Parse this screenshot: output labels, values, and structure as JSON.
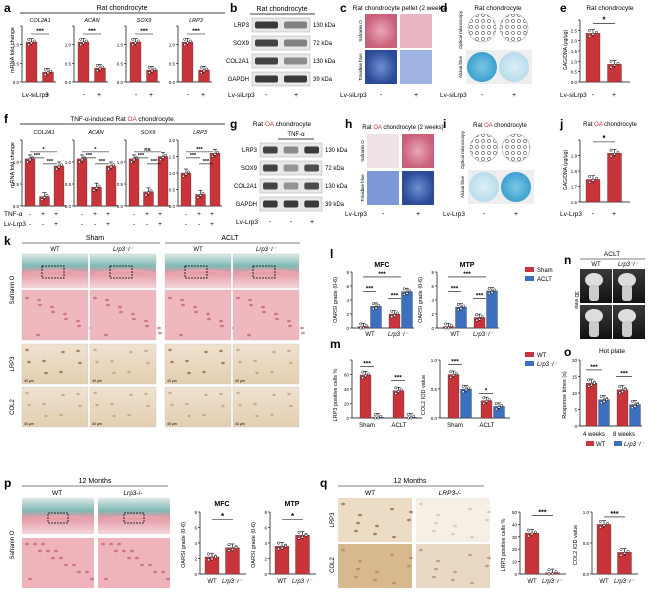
{
  "panel_letters": [
    "a",
    "b",
    "c",
    "d",
    "e",
    "f",
    "g",
    "h",
    "i",
    "j",
    "k",
    "l",
    "m",
    "n",
    "o",
    "p",
    "q"
  ],
  "colors": {
    "red": "#c9343a",
    "light_red": "#e98b8b",
    "blue": "#3d6fbf",
    "green": "#b8e0a6",
    "stain_red": "#dc7f8c",
    "stain_blue": "#4f73b8",
    "ihc": "#c9a37a"
  },
  "a": {
    "title": "Rat chondrocyte",
    "ylabel": "mRNA fold change",
    "genes": [
      "COL2A1",
      "ACAN",
      "SOX9",
      "LRP3"
    ],
    "sig": "***",
    "xlabel": "Lv-siLrp3",
    "xticks": [
      "-",
      "+"
    ]
  },
  "b": {
    "title": "Rat chondrocyte",
    "bands": [
      "LRP3",
      "SOX9",
      "COL2A1",
      "GAPDH"
    ],
    "kda": [
      "130 kDa",
      "72 kDa",
      "130 kDa",
      "39 kDa"
    ],
    "xlabel": "Lv-siLrp3",
    "xticks": [
      "-",
      "+"
    ]
  },
  "c": {
    "title": "Rat chondrocyte pellet (2 weeks)",
    "rows": [
      "Safranin O",
      "Toluidine blue"
    ],
    "xlabel": "Lv-siLrp3",
    "xticks": [
      "-",
      "+"
    ]
  },
  "d": {
    "title": "Rat chondrocyte",
    "rows": [
      "Optical microscopy",
      "Alcian blue"
    ],
    "xlabel": "Lv-siLrp3",
    "xticks": [
      "-",
      "+"
    ]
  },
  "e": {
    "title": "Rat chondrocyte",
    "ylabel": "GAG/DNA (μg/μg)",
    "sig": "*",
    "xlabel": "Lv-siLrp3",
    "xticks": [
      "-",
      "+"
    ],
    "ytick_labels": [
      "0.0",
      "0.5",
      "1.0",
      "1.5",
      "2.0",
      "2.5"
    ]
  },
  "f": {
    "title_prefix": "TNF-α-induced Rat ",
    "title_red": "OA",
    "title_suffix": " chondrocyte",
    "ylabel": "mRNA fold change",
    "genes": [
      "COL2A1",
      "ACAN",
      "SOX9",
      "LRP3"
    ],
    "row_labels": [
      "TNF-α",
      "Lv-Lrp3"
    ],
    "tnf": [
      "-",
      "+",
      "+"
    ],
    "lrp": [
      "-",
      "-",
      "+"
    ],
    "sig": "***",
    "sig_single": "*",
    "ns": "ns"
  },
  "g": {
    "title_prefix": "Rat ",
    "title_red": "OA",
    "title_suffix": " chondrocyte",
    "treat": "TNF-α",
    "bands": [
      "LRP3",
      "SOX9",
      "COL2A1",
      "GAPDH"
    ],
    "kda": [
      "130 kDa",
      "72 kDa",
      "130 kDa",
      "39 kDa"
    ],
    "xlabel": "Lv-Lrp3",
    "xticks": [
      "-",
      "-",
      "+"
    ]
  },
  "h": {
    "title_prefix": "Rat ",
    "title_red": "OA",
    "title_suffix": " chondrocyte (2 weeks)",
    "rows": [
      "Safranin O",
      "Toluidine blue"
    ],
    "xlabel": "Lv-Lrp3",
    "xticks": [
      "-",
      "+"
    ]
  },
  "i": {
    "title_prefix": "Rat ",
    "title_red": "OA",
    "title_suffix": " chondrocyte",
    "rows": [
      "Optical microscopy",
      "Alcian blue"
    ],
    "xlabel": "Lv-Lrp3",
    "xticks": [
      "-",
      "+"
    ]
  },
  "j": {
    "title_prefix": "Rat ",
    "title_red": "OA",
    "title_suffix": " chondrocyte",
    "ylabel": "GAG/DNA (μg/μg)",
    "sig": "*",
    "xlabel": "Lv-Lrp3",
    "xticks": [
      "-",
      "+"
    ],
    "ytick_labels": [
      "1.6",
      "1.7",
      "1.8",
      "1.9"
    ]
  },
  "k": {
    "groups": [
      "Sham",
      "ACLT"
    ],
    "cols": [
      "WT",
      "Lrp3⁻/⁻",
      "WT",
      "Lrp3⁻/⁻"
    ],
    "rows": [
      "Safranin O",
      "LRP3",
      "COL2"
    ],
    "scale": "40 μm"
  },
  "l": {
    "titles": [
      "MFC",
      "MTP"
    ],
    "ylabel": "OARSI grade (0-6)",
    "legend": [
      "Sham",
      "ACLT"
    ],
    "xticks": [
      "WT",
      "Lrp3⁻/⁻"
    ],
    "sig": "***",
    "yticks": [
      "0",
      "2",
      "4",
      "6",
      "8"
    ]
  },
  "m": {
    "ylabel_left": "LRP3 positive cells %",
    "ylabel_right": "COL2 IOD value",
    "legend": [
      "WT",
      "Lrp3⁻/⁻"
    ],
    "xticks": [
      "Sham",
      "ACLT"
    ],
    "sig": "***",
    "sig_single": "*"
  },
  "n": {
    "title": "ACLT",
    "cols": [
      "WT",
      "Lrp3⁻/⁻"
    ],
    "side": "3D view"
  },
  "o": {
    "title": "Hot plate",
    "ylabel": "Response times (s)",
    "xticks": [
      "4 weeks",
      "8 weeks"
    ],
    "legend": [
      "WT",
      "Lrp3⁻/⁻"
    ],
    "sig": "***",
    "yticks": [
      "0",
      "5",
      "10",
      "15",
      "20"
    ]
  },
  "p": {
    "title": "12 Months",
    "cols": [
      "WT",
      "Lrp3-/-"
    ],
    "row": "Safranin O",
    "charts": [
      "MFC",
      "MTP"
    ],
    "ylabel": "OARSI grade (0-6)",
    "xticks": [
      "WT",
      "Lrp3⁻/⁻"
    ],
    "sig": "*",
    "yticks": [
      "0",
      "2",
      "4",
      "6",
      "8"
    ]
  },
  "q": {
    "title": "12 Months",
    "cols": [
      "WT",
      "LRP3-/-"
    ],
    "rows": [
      "LRP3",
      "COL2"
    ],
    "ylabel_left": "LRP3 positive cells %",
    "ylabel_right": "COL2 IOD value",
    "xticks": [
      "WT",
      "Lrp3⁻/⁻"
    ],
    "sig": "***"
  },
  "chart_data": [
    {
      "panel": "a",
      "type": "bar",
      "categories": [
        "-",
        "+"
      ],
      "series": [
        {
          "name": "COL2A1",
          "values": [
            1.0,
            0.25
          ]
        },
        {
          "name": "ACAN",
          "values": [
            1.0,
            0.35
          ]
        },
        {
          "name": "SOX9",
          "values": [
            1.0,
            0.3
          ]
        },
        {
          "name": "LRP3",
          "values": [
            1.0,
            0.3
          ]
        }
      ],
      "ylabel": "mRNA fold change",
      "ylim": [
        0,
        1.4
      ]
    },
    {
      "panel": "e",
      "type": "bar",
      "categories": [
        "-",
        "+"
      ],
      "values": [
        2.2,
        0.8
      ],
      "ylabel": "GAG/DNA (μg/μg)",
      "ylim": [
        0,
        2.8
      ]
    },
    {
      "panel": "f",
      "type": "bar",
      "categories": [
        "TNF-α- Lv-Lrp3-",
        "TNF-α+ Lv-Lrp3-",
        "TNF-α+ Lv-Lrp3+"
      ],
      "series": [
        {
          "name": "COL2A1",
          "values": [
            1.0,
            0.2,
            0.85
          ]
        },
        {
          "name": "ACAN",
          "values": [
            1.0,
            0.4,
            0.85
          ]
        },
        {
          "name": "SOX9",
          "values": [
            1.0,
            0.3,
            1.05
          ]
        },
        {
          "name": "LRP3",
          "values": [
            1.0,
            0.35,
            1.6
          ]
        }
      ],
      "ylabel": "mRNA fold change",
      "ylim": [
        0,
        2.0
      ]
    },
    {
      "panel": "j",
      "type": "bar",
      "categories": [
        "-",
        "+"
      ],
      "values": [
        1.72,
        1.86
      ],
      "ylabel": "GAG/DNA (μg/μg)",
      "ylim": [
        1.6,
        1.93
      ]
    },
    {
      "panel": "l",
      "title": "MFC",
      "type": "bar",
      "categories": [
        "WT",
        "Lrp3⁻/⁻"
      ],
      "series": [
        {
          "name": "Sham",
          "values": [
            0.2,
            2.0
          ]
        },
        {
          "name": "ACLT",
          "values": [
            3.1,
            5.2
          ]
        }
      ],
      "ylabel": "OARSI grade (0-6)",
      "ylim": [
        0,
        8
      ]
    },
    {
      "panel": "l",
      "title": "MTP",
      "type": "bar",
      "categories": [
        "WT",
        "Lrp3⁻/⁻"
      ],
      "series": [
        {
          "name": "Sham",
          "values": [
            0.2,
            1.5
          ]
        },
        {
          "name": "ACLT",
          "values": [
            3.0,
            5.3
          ]
        }
      ],
      "ylabel": "OARSI grade (0-6)",
      "ylim": [
        0,
        8
      ]
    },
    {
      "panel": "m",
      "type": "bar",
      "categories": [
        "Sham",
        "ACLT"
      ],
      "series": [
        {
          "name": "WT",
          "values": [
            52,
            33
          ]
        },
        {
          "name": "Lrp3⁻/⁻",
          "values": [
            1,
            1
          ]
        }
      ],
      "ylabel": "LRP3 positive cells %",
      "ylim": [
        0,
        70
      ]
    },
    {
      "panel": "m",
      "type": "bar",
      "categories": [
        "Sham",
        "ACLT"
      ],
      "series": [
        {
          "name": "WT",
          "values": [
            0.75,
            0.3
          ]
        },
        {
          "name": "Lrp3⁻/⁻",
          "values": [
            0.5,
            0.2
          ]
        }
      ],
      "ylabel": "COL2 IOD value",
      "ylim": [
        0,
        1.0
      ]
    },
    {
      "panel": "o",
      "title": "Hot plate",
      "type": "bar",
      "categories": [
        "4 weeks",
        "8 weeks"
      ],
      "series": [
        {
          "name": "WT",
          "values": [
            13,
            11
          ]
        },
        {
          "name": "Lrp3⁻/⁻",
          "values": [
            8,
            6.5
          ]
        }
      ],
      "ylabel": "Response times (s)",
      "ylim": [
        0,
        20
      ]
    },
    {
      "panel": "p",
      "title": "MFC",
      "type": "bar",
      "categories": [
        "WT",
        "Lrp3⁻/⁻"
      ],
      "values": [
        2.2,
        3.4
      ],
      "ylabel": "OARSI grade (0-6)",
      "ylim": [
        0,
        8
      ]
    },
    {
      "panel": "p",
      "title": "MTP",
      "type": "bar",
      "categories": [
        "WT",
        "Lrp3⁻/⁻"
      ],
      "values": [
        3.6,
        5.0
      ],
      "ylabel": "OARSI grade (0-6)",
      "ylim": [
        0,
        8
      ]
    },
    {
      "panel": "q",
      "type": "bar",
      "categories": [
        "WT",
        "Lrp3⁻/⁻"
      ],
      "values": [
        33,
        1
      ],
      "ylabel": "LRP3 positive cells %",
      "ylim": [
        0,
        50
      ]
    },
    {
      "panel": "q",
      "type": "bar",
      "categories": [
        "WT",
        "Lrp3⁻/⁻"
      ],
      "values": [
        0.8,
        0.35
      ],
      "ylabel": "COL2 IOD value",
      "ylim": [
        0,
        1.0
      ]
    }
  ]
}
